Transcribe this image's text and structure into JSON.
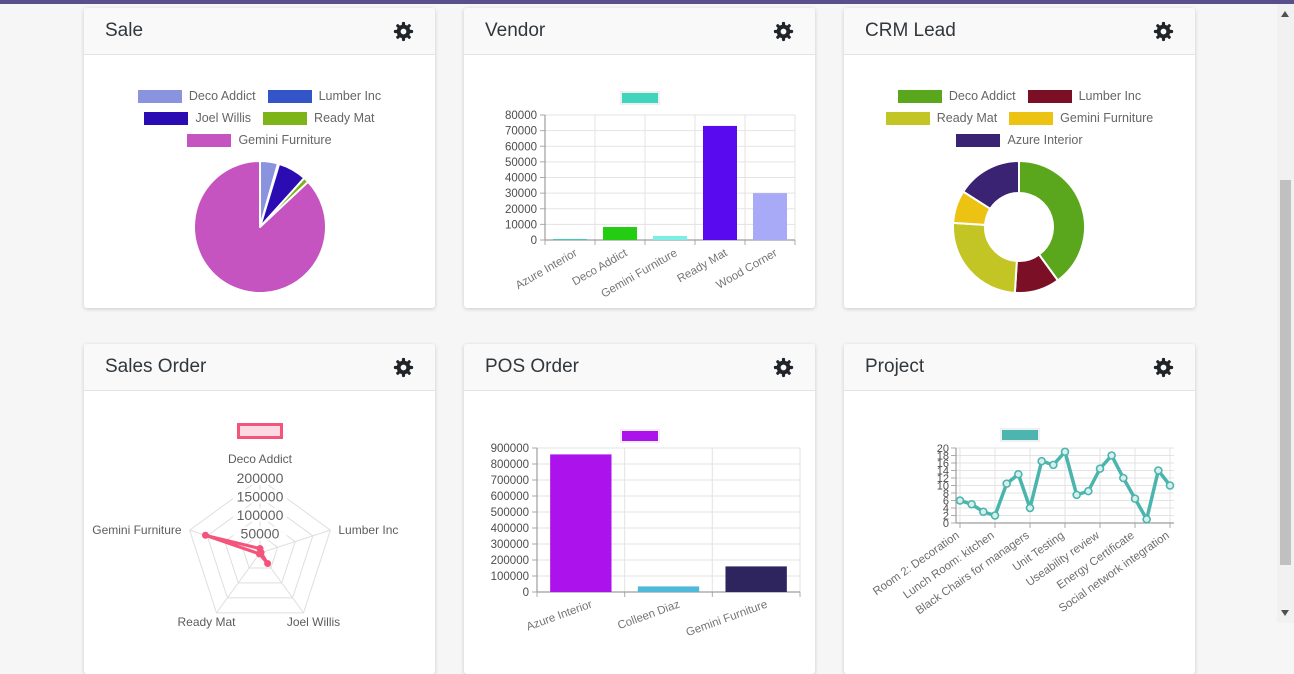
{
  "topbar": {
    "color": "#584f8d"
  },
  "scrollbar": {
    "up_icon": "arrow-up-icon",
    "down_icon": "arrow-down-icon"
  },
  "icons": {
    "settings": "gear-icon"
  },
  "cards": [
    {
      "title": "Sale",
      "chart_data": {
        "type": "pie",
        "labels": [
          "Deco Addict",
          "Lumber Inc",
          "Joel Willis",
          "Ready Mat",
          "Gemini Furniture"
        ],
        "values": [
          4.4,
          0.3,
          7.0,
          1.3,
          87.0
        ],
        "colors": [
          "#8a93de",
          "#3355c8",
          "#2a0cb2",
          "#7db417",
          "#c553c0"
        ],
        "legend_position": "top"
      }
    },
    {
      "title": "Vendor",
      "chart_data": {
        "type": "bar",
        "categories": [
          "Azure Interior",
          "Deco Addict",
          "Gemini Furniture",
          "Ready Mat",
          "Wood Corner"
        ],
        "values": [
          300,
          8300,
          2600,
          73000,
          30000
        ],
        "colors": [
          "#3ec9b8",
          "#24cd12",
          "#7deee4",
          "#5a0aef",
          "#a9aaf7"
        ],
        "ylim": [
          0,
          80000
        ],
        "ytick_step": 10000,
        "legend_swatch_color": "#3fd4bc",
        "grid": true
      }
    },
    {
      "title": "CRM Lead",
      "chart_data": {
        "type": "doughnut",
        "labels": [
          "Deco Addict",
          "Lumber Inc",
          "Ready Mat",
          "Gemini Furniture",
          "Azure Interior"
        ],
        "values": [
          40,
          11,
          25,
          8,
          16
        ],
        "colors": [
          "#5aa61c",
          "#7a0f26",
          "#c2c524",
          "#edc313",
          "#3a2372"
        ],
        "legend_position": "top"
      }
    },
    {
      "title": "Sales Order",
      "chart_data": {
        "type": "radar",
        "axes": [
          "Deco Addict",
          "Lumber Inc",
          "Joel Willis",
          "Ready Mat",
          "Gemini Furniture"
        ],
        "values": [
          12000,
          3000,
          35000,
          3000,
          155000
        ],
        "rmax": 200000,
        "rtick_step": 50000,
        "rtick_labels": [
          "50000",
          "100000",
          "150000",
          "200000"
        ],
        "color": "#f4547c",
        "legend_swatch_fill": "#fbd9e3",
        "legend_swatch_border": "#f4547c"
      }
    },
    {
      "title": "POS Order",
      "chart_data": {
        "type": "bar",
        "categories": [
          "Azure Interior",
          "Colleen Diaz",
          "Gemini Furniture"
        ],
        "values": [
          860000,
          35000,
          160000
        ],
        "colors": [
          "#ac13ec",
          "#4fb9d9",
          "#2e255e"
        ],
        "ylim": [
          0,
          900000
        ],
        "ytick_step": 100000,
        "legend_swatch_color": "#ac13ec",
        "grid": true
      }
    },
    {
      "title": "Project",
      "chart_data": {
        "type": "line",
        "x_labels_shown": [
          "Room 2: Decoration",
          "Lunch Room: kitchen",
          "Black Chairs for managers",
          "Unit Testing",
          "Useability review",
          "Energy Certificate",
          "Social network integration"
        ],
        "label_point_indices": [
          0,
          3,
          6,
          9,
          12,
          15,
          18
        ],
        "values": [
          6,
          5,
          3,
          2,
          10.5,
          13,
          4,
          16.5,
          15.5,
          19,
          7.5,
          8.5,
          14.5,
          18,
          12,
          6.5,
          1,
          14,
          10
        ],
        "ylim": [
          0,
          20
        ],
        "ytick_step": 2,
        "color": "#4ab5ad",
        "legend_swatch_color": "#4cb5b0",
        "grid": true
      }
    }
  ]
}
